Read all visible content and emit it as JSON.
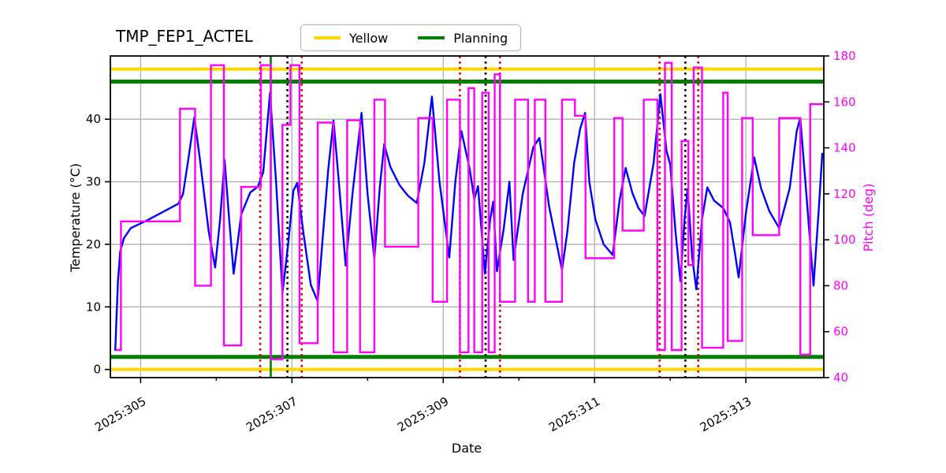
{
  "title": "TMP_FEP1_ACTEL",
  "legend": {
    "items": [
      {
        "label": "Yellow",
        "color": "#ffd700"
      },
      {
        "label": "Planning",
        "color": "#008000"
      }
    ]
  },
  "axes": {
    "xlabel": "Date",
    "ylabel_left": "Temperature (°C)",
    "ylabel_right": "Pitch (deg)"
  },
  "chart_data": {
    "type": "line",
    "title": "TMP_FEP1_ACTEL",
    "xlabel": "Date",
    "ylabel_left": "Temperature (°C)",
    "ylabel_right": "Pitch (deg)",
    "xlim": [
      304.6,
      314.03
    ],
    "ylim_left": [
      -1.3,
      50.1
    ],
    "ylim_right": [
      40,
      180
    ],
    "grid": true,
    "grid_color": "#b0b0b0",
    "x_ticks": [
      {
        "day": 305,
        "label": "2025:305"
      },
      {
        "day": 307,
        "label": "2025:307"
      },
      {
        "day": 309,
        "label": "2025:309"
      },
      {
        "day": 311,
        "label": "2025:311"
      },
      {
        "day": 313,
        "label": "2025:313"
      }
    ],
    "x_minor_ticks": [
      306,
      308,
      310,
      312
    ],
    "y_ticks_left": [
      0,
      10,
      20,
      30,
      40
    ],
    "y_ticks_right": [
      40,
      60,
      80,
      100,
      120,
      140,
      160,
      180
    ],
    "hlines": [
      {
        "name": "yellow-upper-limit",
        "y": 48,
        "color": "#ffd700",
        "width": 4
      },
      {
        "name": "yellow-lower-limit",
        "y": 0,
        "color": "#ffd700",
        "width": 4
      },
      {
        "name": "planning-upper-limit",
        "y": 46,
        "color": "#008000",
        "width": 5
      },
      {
        "name": "planning-lower-limit",
        "y": 2,
        "color": "#008000",
        "width": 5
      }
    ],
    "vlines": [
      {
        "x": 306.58,
        "color": "#dd0000",
        "style": "dotted"
      },
      {
        "x": 306.72,
        "color": "#008000",
        "style": "solid"
      },
      {
        "x": 306.94,
        "color": "#000000",
        "style": "dotted"
      },
      {
        "x": 307.13,
        "color": "#dd0000",
        "style": "dotted"
      },
      {
        "x": 309.22,
        "color": "#dd0000",
        "style": "dotted"
      },
      {
        "x": 309.56,
        "color": "#000000",
        "style": "dotted"
      },
      {
        "x": 309.75,
        "color": "#dd0000",
        "style": "dotted"
      },
      {
        "x": 311.86,
        "color": "#dd0000",
        "style": "dotted"
      },
      {
        "x": 312.2,
        "color": "#000000",
        "style": "dotted"
      },
      {
        "x": 312.37,
        "color": "#dd0000",
        "style": "dotted"
      }
    ],
    "series": [
      {
        "name": "temperature",
        "axis": "left",
        "type": "line",
        "color": "#0000ff",
        "points": [
          [
            304.665,
            3
          ],
          [
            304.68,
            8
          ],
          [
            304.7,
            14
          ],
          [
            304.73,
            18.9
          ],
          [
            304.78,
            21
          ],
          [
            304.87,
            22.6
          ],
          [
            305.08,
            23.8
          ],
          [
            305.3,
            25.2
          ],
          [
            305.5,
            26.5
          ],
          [
            305.56,
            28
          ],
          [
            305.63,
            33.5
          ],
          [
            305.71,
            40.3
          ],
          [
            305.78,
            34
          ],
          [
            305.9,
            22
          ],
          [
            305.985,
            16.3
          ],
          [
            306.05,
            24
          ],
          [
            306.11,
            33.5
          ],
          [
            306.17,
            24
          ],
          [
            306.23,
            15.3
          ],
          [
            306.33,
            24.8
          ],
          [
            306.45,
            28.3
          ],
          [
            306.55,
            29.2
          ],
          [
            306.62,
            31.5
          ],
          [
            306.71,
            44.2
          ],
          [
            306.79,
            30
          ],
          [
            306.875,
            12.2
          ],
          [
            306.95,
            20
          ],
          [
            307.02,
            28.6
          ],
          [
            307.07,
            29.8
          ],
          [
            307.15,
            22
          ],
          [
            307.25,
            13.5
          ],
          [
            307.34,
            10.9
          ],
          [
            307.4,
            20
          ],
          [
            307.48,
            32
          ],
          [
            307.55,
            39.8
          ],
          [
            307.62,
            30
          ],
          [
            307.71,
            16.6
          ],
          [
            307.8,
            28
          ],
          [
            307.92,
            41
          ],
          [
            308.0,
            28
          ],
          [
            308.09,
            17.7
          ],
          [
            308.16,
            29
          ],
          [
            308.22,
            36
          ],
          [
            308.3,
            32.4
          ],
          [
            308.42,
            29.5
          ],
          [
            308.53,
            27.8
          ],
          [
            308.65,
            26.6
          ],
          [
            308.75,
            33
          ],
          [
            308.85,
            43.6
          ],
          [
            308.95,
            30
          ],
          [
            309.08,
            17.9
          ],
          [
            309.16,
            30
          ],
          [
            309.24,
            38.1
          ],
          [
            309.35,
            32
          ],
          [
            309.41,
            27.2
          ],
          [
            309.46,
            29.3
          ],
          [
            309.55,
            15.3
          ],
          [
            309.62,
            24
          ],
          [
            309.66,
            26.8
          ],
          [
            309.71,
            15.7
          ],
          [
            309.8,
            22.5
          ],
          [
            309.875,
            30
          ],
          [
            309.93,
            17.5
          ],
          [
            310.05,
            28
          ],
          [
            310.19,
            35.5
          ],
          [
            310.27,
            37
          ],
          [
            310.4,
            26
          ],
          [
            310.57,
            15.9
          ],
          [
            310.64,
            22
          ],
          [
            310.73,
            33
          ],
          [
            310.81,
            38.5
          ],
          [
            310.875,
            41
          ],
          [
            310.93,
            30
          ],
          [
            311.01,
            24
          ],
          [
            311.12,
            20
          ],
          [
            311.24,
            18.3
          ],
          [
            311.33,
            27
          ],
          [
            311.41,
            32.2
          ],
          [
            311.5,
            28.2
          ],
          [
            311.58,
            25.8
          ],
          [
            311.66,
            24.5
          ],
          [
            311.78,
            33
          ],
          [
            311.87,
            44
          ],
          [
            311.95,
            35
          ],
          [
            312.0,
            32.7
          ],
          [
            312.07,
            22
          ],
          [
            312.135,
            14.1
          ],
          [
            312.19,
            24
          ],
          [
            312.23,
            28.9
          ],
          [
            312.29,
            18
          ],
          [
            312.345,
            12.8
          ],
          [
            312.42,
            24
          ],
          [
            312.49,
            29.1
          ],
          [
            312.58,
            27
          ],
          [
            312.7,
            25.8
          ],
          [
            312.79,
            23.5
          ],
          [
            312.85,
            19
          ],
          [
            312.905,
            14.7
          ],
          [
            313.0,
            25
          ],
          [
            313.11,
            33.9
          ],
          [
            313.2,
            29
          ],
          [
            313.31,
            25.3
          ],
          [
            313.44,
            22.6
          ],
          [
            313.58,
            29
          ],
          [
            313.67,
            38
          ],
          [
            313.72,
            40.2
          ],
          [
            313.78,
            31
          ],
          [
            313.895,
            13.4
          ],
          [
            313.96,
            25
          ],
          [
            314.01,
            34.6
          ]
        ]
      },
      {
        "name": "pitch",
        "axis": "right",
        "type": "step",
        "color": "#ff00ff",
        "points": [
          [
            304.667,
            52
          ],
          [
            304.74,
            108
          ],
          [
            305.52,
            157
          ],
          [
            305.72,
            80
          ],
          [
            305.93,
            176
          ],
          [
            306.1,
            54
          ],
          [
            306.33,
            123
          ],
          [
            306.59,
            176
          ],
          [
            306.72,
            48
          ],
          [
            306.875,
            150
          ],
          [
            306.98,
            176
          ],
          [
            307.1,
            55
          ],
          [
            307.34,
            151
          ],
          [
            307.55,
            51
          ],
          [
            307.73,
            152
          ],
          [
            307.9,
            51
          ],
          [
            308.09,
            161
          ],
          [
            308.23,
            97
          ],
          [
            308.67,
            153
          ],
          [
            308.86,
            73
          ],
          [
            309.05,
            161
          ],
          [
            309.22,
            51
          ],
          [
            309.334,
            166
          ],
          [
            309.41,
            51
          ],
          [
            309.515,
            164
          ],
          [
            309.6,
            51
          ],
          [
            309.68,
            172
          ],
          [
            309.75,
            73
          ],
          [
            309.95,
            161
          ],
          [
            310.12,
            73
          ],
          [
            310.21,
            161
          ],
          [
            310.35,
            73
          ],
          [
            310.57,
            161
          ],
          [
            310.74,
            154
          ],
          [
            310.88,
            92
          ],
          [
            311.26,
            153
          ],
          [
            311.37,
            104
          ],
          [
            311.65,
            161
          ],
          [
            311.83,
            52
          ],
          [
            311.93,
            177
          ],
          [
            312.02,
            52
          ],
          [
            312.15,
            143
          ],
          [
            312.24,
            89
          ],
          [
            312.31,
            175
          ],
          [
            312.42,
            53
          ],
          [
            312.7,
            164
          ],
          [
            312.76,
            56
          ],
          [
            312.95,
            153
          ],
          [
            313.09,
            102
          ],
          [
            313.44,
            153
          ],
          [
            313.72,
            50
          ],
          [
            313.85,
            159
          ],
          [
            314.03,
            159
          ]
        ]
      }
    ]
  }
}
